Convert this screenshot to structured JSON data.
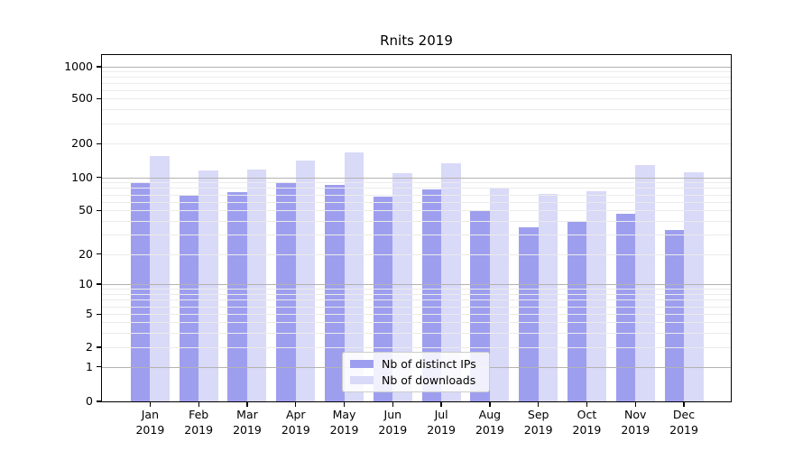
{
  "chart_data": {
    "type": "bar",
    "title": "Rnits 2019",
    "months": [
      "Jan",
      "Feb",
      "Mar",
      "Apr",
      "May",
      "Jun",
      "Jul",
      "Aug",
      "Sep",
      "Oct",
      "Nov",
      "Dec"
    ],
    "year": "2019",
    "series": [
      {
        "name": "Nb of distinct IPs",
        "color": "#9e9eef",
        "values": [
          88,
          70,
          73,
          91,
          85,
          67,
          78,
          49,
          35,
          39,
          47,
          33
        ]
      },
      {
        "name": "Nb of downloads",
        "color": "#d9d9f8",
        "values": [
          155,
          115,
          118,
          142,
          168,
          110,
          135,
          80,
          71,
          75,
          130,
          112
        ]
      }
    ],
    "yscale": "symlog",
    "ylim": [
      0,
      1300
    ],
    "ytick_labels": [
      "1000",
      "500",
      "200",
      "100",
      "50",
      "20",
      "10",
      "5",
      "2",
      "1",
      "0"
    ],
    "ytick_values": [
      1000,
      500,
      200,
      100,
      50,
      20,
      10,
      5,
      2,
      1,
      0
    ],
    "grid": {
      "major_color": "#b3b3b3",
      "minor_color": "#ebebeb",
      "orientation": "horizontal"
    },
    "legend_position": "lower center inside plot"
  }
}
